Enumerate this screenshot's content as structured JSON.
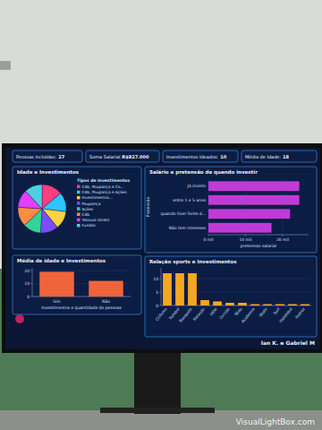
{
  "dashboard": {
    "kpis": [
      {
        "label": "Pessoas incluídas:",
        "value": 27
      },
      {
        "label": "Soma Salarial",
        "value": "R$827.000"
      },
      {
        "label": "Investimentos Ideados:",
        "value": 10
      },
      {
        "label": "Média de Idade:",
        "value": 18
      }
    ],
    "footer": "Ian K. e Gabriel M",
    "watermark": "VisualLightBox.com"
  },
  "chart_data": [
    {
      "type": "pie",
      "title": "Idade e Investimentos",
      "legend_title": "Tipos de Investimentos",
      "categories": [
        "Cdb, Poupança e Co...",
        "Cdb, Poupança e Ações",
        "Investimentos...",
        "Poupança",
        "Ações",
        "Cdb",
        "Tesouro Direto",
        "Fundos"
      ],
      "values": [
        14,
        13,
        12,
        12,
        12,
        13,
        12,
        12
      ],
      "colors": [
        "#ff3d7f",
        "#2ec4ff",
        "#ffd23f",
        "#7c4dff",
        "#34d399",
        "#ff8c42",
        "#e040fb",
        "#4dd0e1"
      ],
      "legend": "right"
    },
    {
      "type": "bar",
      "orientation": "horizontal",
      "title": "Salário e pretensão de quando investir",
      "categories": [
        "Já invisto",
        "entre 1 e 5 anos",
        "quando tiver fonte d...",
        "Não tem interesse"
      ],
      "values": [
        24.5,
        24.5,
        22,
        17
      ],
      "color": "#c13ad6",
      "xlim": [
        0,
        27
      ],
      "xticks": [
        {
          "value": 0,
          "label": "0 mil"
        },
        {
          "value": 10,
          "label": "10 mil"
        },
        {
          "value": 20,
          "label": "20 mil"
        }
      ],
      "xlabel": "pretensao salarial",
      "ylabel": "Pretensão",
      "grid": true
    },
    {
      "type": "bar",
      "title": "Média de idade e Investimentos",
      "categories": [
        "Sim",
        "Não"
      ],
      "values": [
        19,
        12
      ],
      "color": "#f0643c",
      "ylim": [
        0,
        22
      ],
      "yticks": [
        0,
        10,
        20
      ],
      "xlabel": "Investimentos e quantidade de pessoas",
      "grid": true
    },
    {
      "type": "bar",
      "title": "Relação sports e Investimentos",
      "categories": [
        "Ciclismo",
        "Futebol",
        "Basquete",
        "Natação",
        "Vôlei",
        "Corrida",
        "Tênis",
        "Academia",
        "Skate",
        "Surf",
        "Handebol",
        "Xadrez"
      ],
      "values": [
        12,
        12,
        12,
        2,
        1.5,
        1,
        1,
        0.5,
        0.5,
        0.5,
        0.5,
        0.5
      ],
      "color": "#f5a623",
      "ylim": [
        0,
        14
      ],
      "yticks": [
        0,
        5,
        10
      ],
      "grid": true
    }
  ]
}
